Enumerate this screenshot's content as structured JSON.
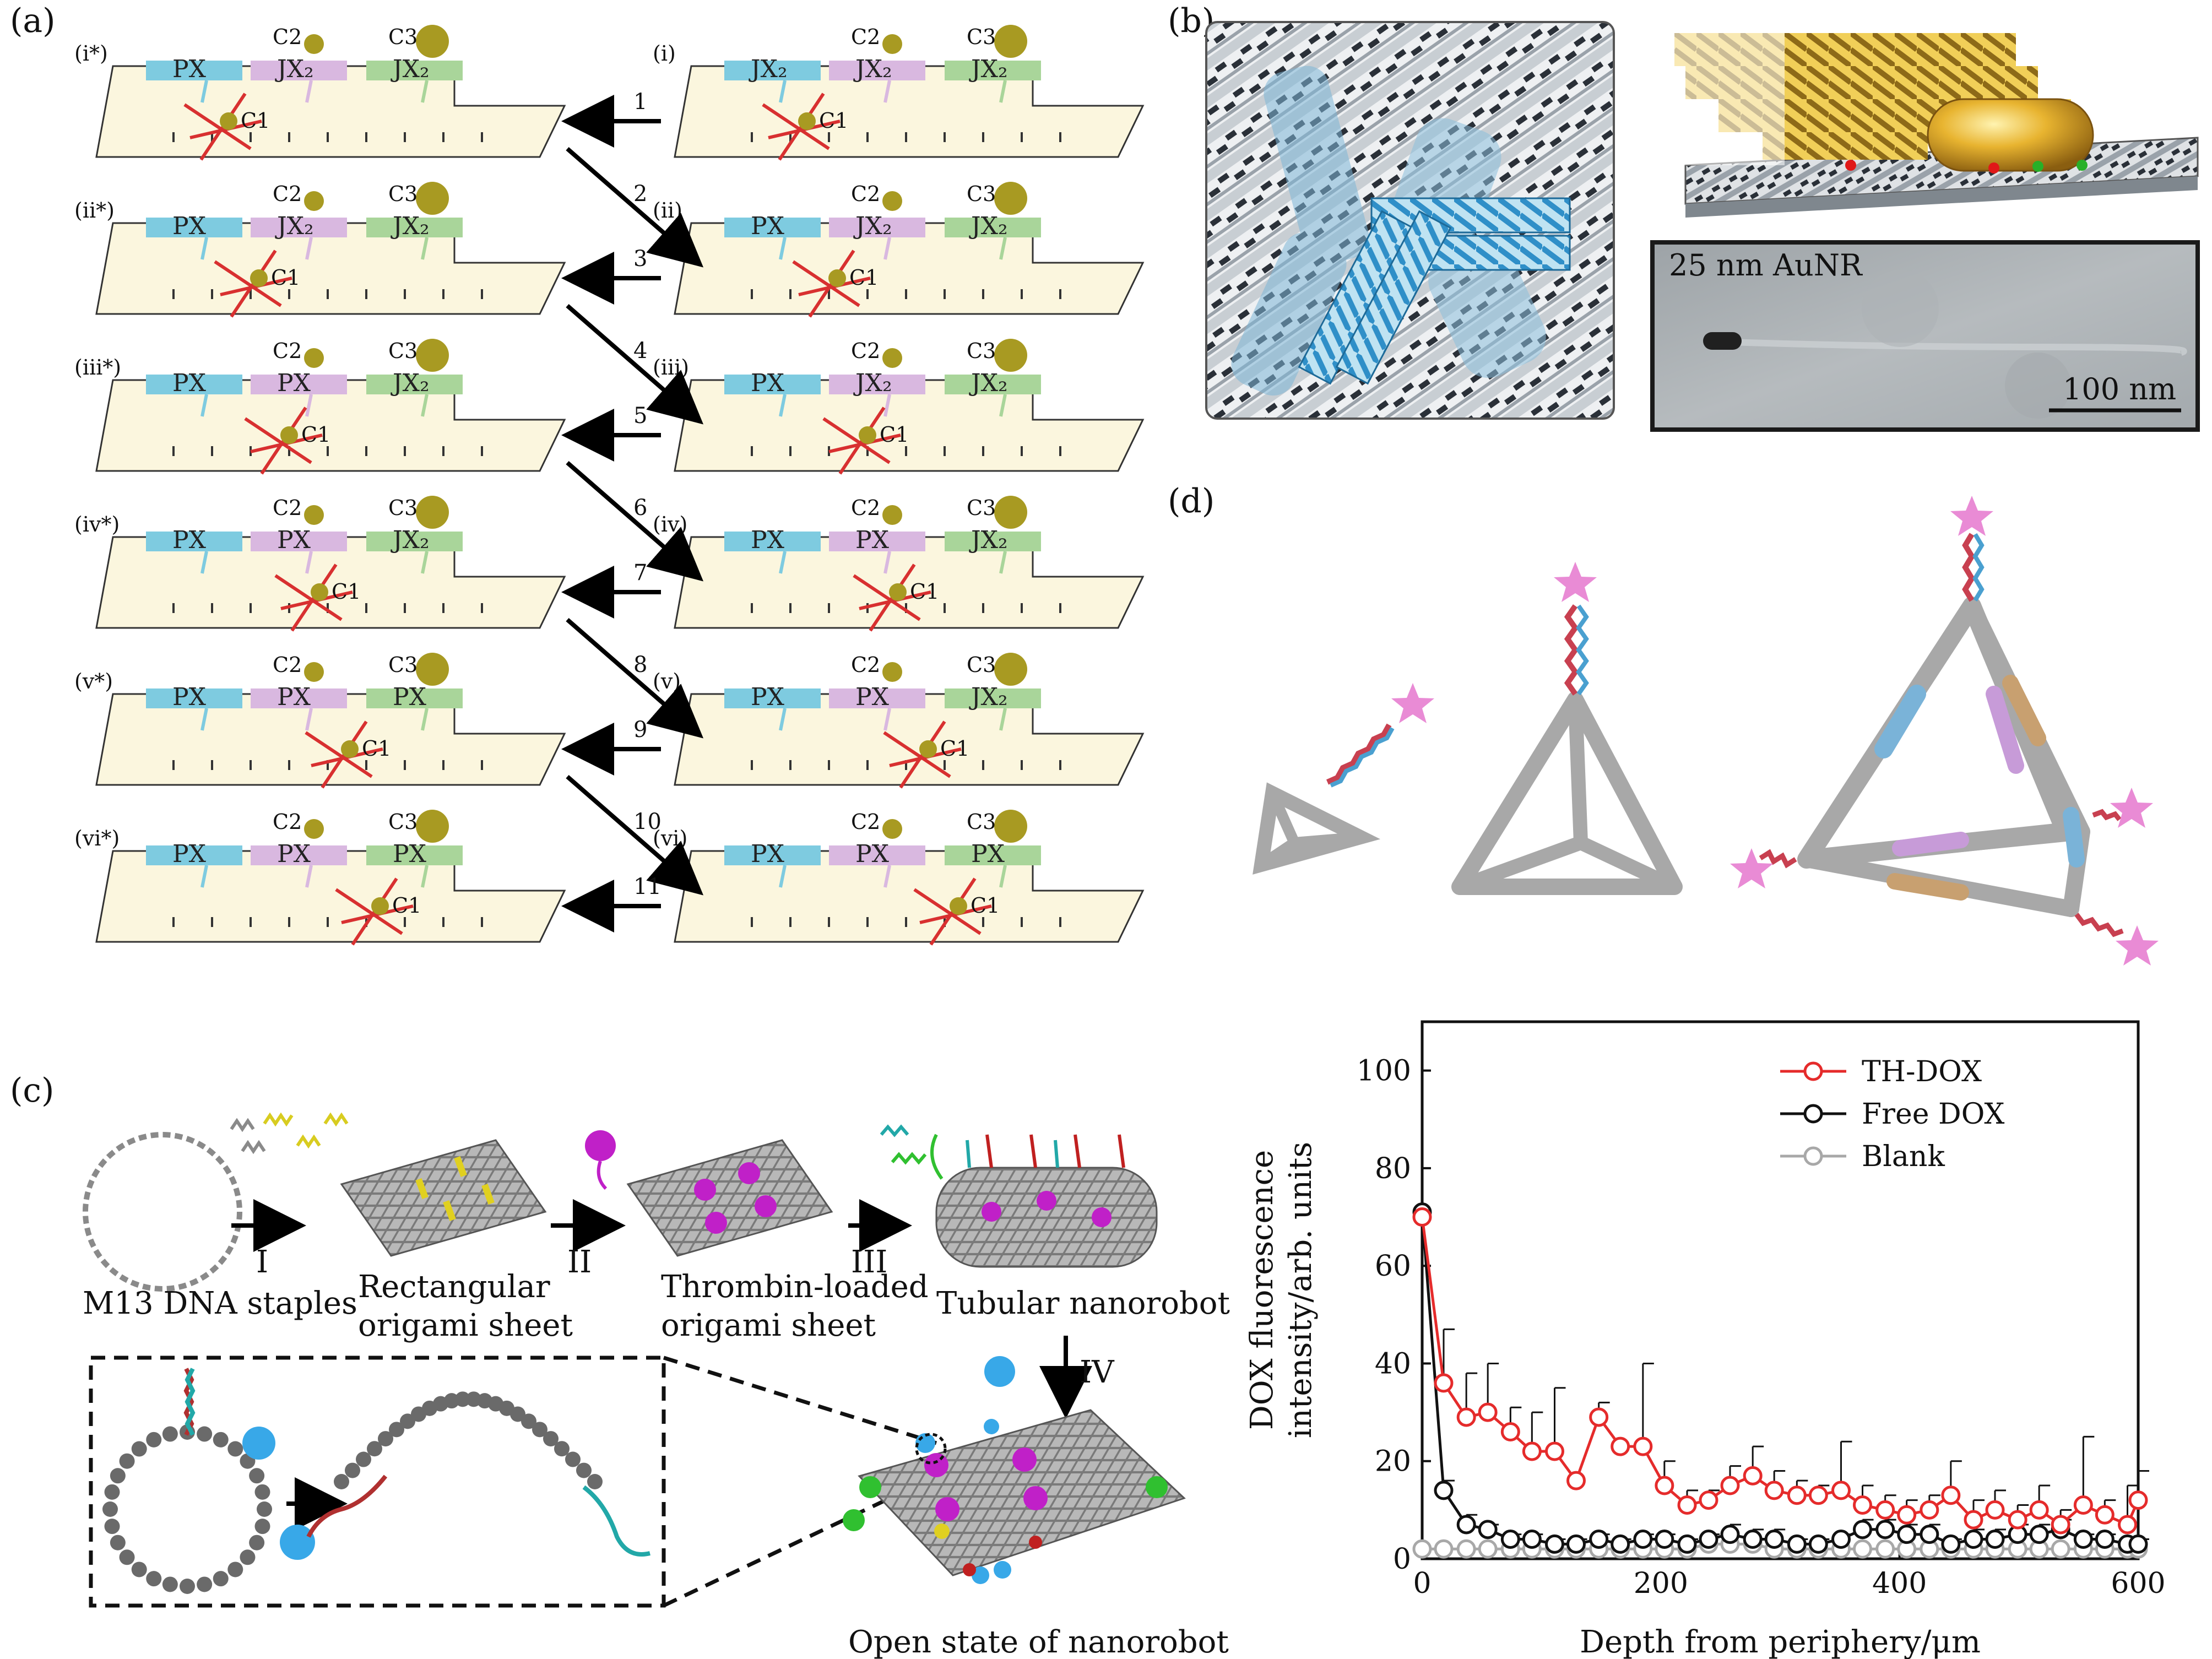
{
  "panel_labels": {
    "a": "(a)",
    "b": "(b)",
    "c": "(c)",
    "d": "(d)"
  },
  "panel_a": {
    "left_states": [
      "(i*)",
      "(ii*)",
      "(iii*)",
      "(iv*)",
      "(v*)",
      "(vi*)"
    ],
    "right_states": [
      "(i)",
      "(ii)",
      "(iii)",
      "(iv)",
      "(v)",
      "(vi)"
    ],
    "left_rows": [
      [
        "PX",
        "JX₂",
        "JX₂"
      ],
      [
        "PX",
        "JX₂",
        "JX₂"
      ],
      [
        "PX",
        "PX",
        "JX₂"
      ],
      [
        "PX",
        "PX",
        "JX₂"
      ],
      [
        "PX",
        "PX",
        "PX"
      ],
      [
        "PX",
        "PX",
        "PX"
      ]
    ],
    "right_rows": [
      [
        "JX₂",
        "JX₂",
        "JX₂"
      ],
      [
        "PX",
        "JX₂",
        "JX₂"
      ],
      [
        "PX",
        "JX₂",
        "JX₂"
      ],
      [
        "PX",
        "PX",
        "JX₂"
      ],
      [
        "PX",
        "PX",
        "JX₂"
      ],
      [
        "PX",
        "PX",
        "PX"
      ]
    ],
    "cargo": {
      "c1": "C1",
      "c2": "C2",
      "c3": "C3"
    },
    "step_numbers": [
      "1",
      "2",
      "3",
      "4",
      "5",
      "6",
      "7",
      "8",
      "9",
      "10",
      "11"
    ],
    "colors": {
      "px": "#7ecbe0",
      "jx_mid": "#d9b8e0",
      "jx_right": "#a9d59a",
      "platform": "#fbf6de",
      "cargo": "#a89a22",
      "walker": "#d83030"
    }
  },
  "panel_b": {
    "tem_label": "25 nm AuNR",
    "scale_bar": "100 nm",
    "colors": {
      "dna_light": "#d8dde0",
      "dna_dark": "#3a4048",
      "helix_blue": "#3aa6d8",
      "gold": "#e0a82a"
    }
  },
  "panel_c": {
    "step_labels": [
      "I",
      "II",
      "III",
      "IV"
    ],
    "captions": {
      "m13": "M13 DNA staples",
      "sheet_1": "Rectangular",
      "sheet_2": "origami sheet",
      "loaded_1": "Thrombin-loaded",
      "loaded_2": "origami sheet",
      "tubular": "Tubular nanorobot",
      "open": "Open state of nanorobot"
    },
    "colors": {
      "origami": "#8e8e8e",
      "staple": "#e0d020",
      "thrombin": "#c020c8",
      "aptamer": "#22a8a8",
      "green": "#30c030",
      "red": "#c02020",
      "target": "#38a8e8"
    }
  },
  "panel_d": {
    "colors": {
      "frame": "#a8a8a8",
      "star": "#e98bd5",
      "helix_red": "#c84050",
      "helix_blue": "#4aa0d0",
      "blue_seg": "#7ab3d8",
      "purple_seg": "#c79bd8",
      "tan_seg": "#c8a070"
    }
  },
  "chart_data": {
    "type": "line",
    "xlabel": "Depth from periphery/μm",
    "ylabel_line1": "DOX fluorescence",
    "ylabel_line2": "intensity/arb. units",
    "xlim": [
      0,
      600
    ],
    "ylim": [
      0,
      110
    ],
    "x_ticks": [
      0,
      200,
      400,
      600
    ],
    "y_ticks": [
      0,
      20,
      40,
      60,
      80,
      100
    ],
    "legend_position": "top-right",
    "grid": false,
    "series": [
      {
        "name": "TH-DOX",
        "color": "#e52b2b",
        "x": [
          0,
          18,
          37,
          55,
          74,
          92,
          111,
          129,
          148,
          166,
          185,
          203,
          222,
          240,
          258,
          277,
          295,
          314,
          332,
          351,
          369,
          388,
          406,
          425,
          443,
          462,
          480,
          499,
          517,
          535,
          554,
          572,
          591,
          600
        ],
        "y": [
          70,
          36,
          29,
          30,
          26,
          22,
          22,
          16,
          29,
          23,
          23,
          15,
          11,
          12,
          15,
          17,
          14,
          13,
          13,
          14,
          11,
          10,
          9,
          10,
          13,
          8,
          10,
          8,
          10,
          7,
          11,
          9,
          7,
          12
        ],
        "err": [
          0,
          11,
          9,
          10,
          5,
          8,
          13,
          0,
          3,
          0,
          17,
          5,
          3,
          2,
          4,
          6,
          4,
          3,
          2,
          10,
          4,
          3,
          3,
          3,
          7,
          4,
          4,
          3,
          5,
          3,
          14,
          3,
          8,
          6
        ]
      },
      {
        "name": "Free DOX",
        "color": "#111111",
        "x": [
          0,
          18,
          37,
          55,
          74,
          92,
          111,
          129,
          148,
          166,
          185,
          203,
          222,
          240,
          258,
          277,
          295,
          314,
          332,
          351,
          369,
          388,
          406,
          425,
          443,
          462,
          480,
          499,
          517,
          535,
          554,
          572,
          591,
          600
        ],
        "y": [
          71,
          14,
          7,
          6,
          4,
          4,
          3,
          3,
          4,
          3,
          4,
          4,
          3,
          4,
          5,
          4,
          4,
          3,
          3,
          4,
          6,
          6,
          5,
          5,
          3,
          4,
          4,
          5,
          5,
          6,
          4,
          4,
          3,
          3
        ],
        "err": [
          0,
          2,
          2,
          1,
          1,
          1,
          1,
          1,
          1,
          1,
          1,
          1,
          1,
          1,
          2,
          2,
          2,
          1,
          1,
          1,
          2,
          2,
          2,
          2,
          1,
          2,
          2,
          2,
          2,
          2,
          1,
          1,
          1,
          1
        ]
      },
      {
        "name": "Blank",
        "color": "#a8a8a8",
        "x": [
          0,
          18,
          37,
          55,
          74,
          92,
          111,
          129,
          148,
          166,
          185,
          203,
          222,
          240,
          258,
          277,
          295,
          314,
          332,
          351,
          369,
          388,
          406,
          425,
          443,
          462,
          480,
          499,
          517,
          535,
          554,
          572,
          591,
          600
        ],
        "y": [
          2,
          2,
          2,
          2,
          2,
          2,
          2,
          2,
          2,
          2,
          2,
          2,
          2,
          3,
          3,
          3,
          2,
          2,
          2,
          2,
          2,
          2,
          2,
          2,
          2,
          2,
          2,
          2,
          2,
          2,
          2,
          2,
          2,
          2
        ],
        "err": [
          0,
          0,
          0,
          0,
          0,
          0,
          0,
          0,
          0,
          0,
          0,
          0,
          0,
          0,
          0,
          0,
          0,
          0,
          0,
          0,
          0,
          0,
          0,
          0,
          0,
          0,
          0,
          0,
          0,
          0,
          0,
          0,
          0,
          0
        ]
      }
    ]
  }
}
